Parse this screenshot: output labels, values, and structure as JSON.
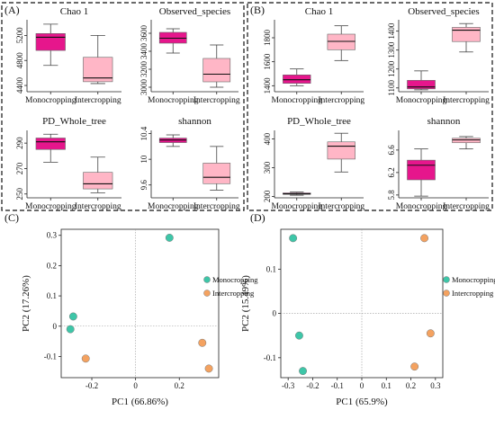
{
  "panel_labels": [
    "(A)",
    "(B)",
    "(C)",
    "(D)"
  ],
  "colors": {
    "monocropping_box": "#e6168c",
    "intercropping_box": "#ffb6c6",
    "monocropping_point": "#3ec6a8",
    "intercropping_point": "#f4a260"
  },
  "chart_data": [
    {
      "id": "A1",
      "type": "box",
      "title": "Chao 1",
      "categories": [
        "Monocropping",
        "Intercropping"
      ],
      "ylim": [
        4300,
        5450
      ],
      "yticks": [
        4400,
        4800,
        5200
      ],
      "boxes": [
        {
          "min": 4720,
          "q1": 4960,
          "median": 5170,
          "q3": 5230,
          "max": 5380
        },
        {
          "min": 4430,
          "q1": 4460,
          "median": 4520,
          "q3": 4850,
          "max": 5200
        }
      ]
    },
    {
      "id": "A2",
      "type": "box",
      "title": "Observed_species",
      "categories": [
        "Monocropping",
        "Intercropping"
      ],
      "ylim": [
        2950,
        3750
      ],
      "yticks": [
        3000,
        3200,
        3400,
        3600
      ],
      "boxes": [
        {
          "min": 3380,
          "q1": 3490,
          "median": 3545,
          "q3": 3610,
          "max": 3650
        },
        {
          "min": 3000,
          "q1": 3060,
          "median": 3145,
          "q3": 3320,
          "max": 3470
        }
      ]
    },
    {
      "id": "A3",
      "type": "box",
      "title": "PD_Whole_tree",
      "categories": [
        "Monocropping",
        "Intercropping"
      ],
      "ylim": [
        247,
        300
      ],
      "yticks": [
        250,
        270,
        290
      ],
      "boxes": [
        {
          "min": 275,
          "q1": 285,
          "median": 291,
          "q3": 294,
          "max": 297
        },
        {
          "min": 251,
          "q1": 254,
          "median": 258,
          "q3": 267,
          "max": 279
        }
      ]
    },
    {
      "id": "A4",
      "type": "box",
      "title": "shannon",
      "categories": [
        "Monocropping",
        "Intercropping"
      ],
      "ylim": [
        9.4,
        10.45
      ],
      "yticks": [
        9.6,
        10.0,
        10.4
      ],
      "boxes": [
        {
          "min": 10.2,
          "q1": 10.26,
          "median": 10.3,
          "q3": 10.33,
          "max": 10.38
        },
        {
          "min": 9.52,
          "q1": 9.62,
          "median": 9.72,
          "q3": 9.94,
          "max": 10.2
        }
      ]
    },
    {
      "id": "B1",
      "type": "box",
      "title": "Chao 1",
      "categories": [
        "Monocropping",
        "Intercropping"
      ],
      "ylim": [
        1350,
        1950
      ],
      "yticks": [
        1400,
        1600,
        1800
      ],
      "boxes": [
        {
          "min": 1400,
          "q1": 1420,
          "median": 1450,
          "q3": 1490,
          "max": 1540
        },
        {
          "min": 1610,
          "q1": 1700,
          "median": 1770,
          "q3": 1830,
          "max": 1900
        }
      ]
    },
    {
      "id": "B2",
      "type": "box",
      "title": "Observed_species",
      "categories": [
        "Monocropping",
        "Intercropping"
      ],
      "ylim": [
        1080,
        1460
      ],
      "yticks": [
        1100,
        1200,
        1300,
        1400
      ],
      "boxes": [
        {
          "min": 1090,
          "q1": 1095,
          "median": 1105,
          "q3": 1140,
          "max": 1190
        },
        {
          "min": 1290,
          "q1": 1345,
          "median": 1405,
          "q3": 1420,
          "max": 1440
        }
      ]
    },
    {
      "id": "B3",
      "type": "box",
      "title": "PD_Whole_tree",
      "categories": [
        "Monocropping",
        "Intercropping"
      ],
      "ylim": [
        195,
        430
      ],
      "yticks": [
        200,
        300,
        400
      ],
      "boxes": [
        {
          "min": 204,
          "q1": 207,
          "median": 209,
          "q3": 212,
          "max": 215
        },
        {
          "min": 285,
          "q1": 330,
          "median": 375,
          "q3": 390,
          "max": 420
        }
      ]
    },
    {
      "id": "B4",
      "type": "box",
      "title": "shannon",
      "categories": [
        "Monocropping",
        "Intercropping"
      ],
      "ylim": [
        5.75,
        6.95
      ],
      "yticks": [
        5.8,
        6.2,
        6.6
      ],
      "boxes": [
        {
          "min": 5.78,
          "q1": 6.07,
          "median": 6.33,
          "q3": 6.42,
          "max": 6.62
        },
        {
          "min": 6.62,
          "q1": 6.73,
          "median": 6.78,
          "q3": 6.81,
          "max": 6.84
        }
      ]
    },
    {
      "id": "C",
      "type": "scatter",
      "xlabel": "PC1 (66.86%)",
      "ylabel": "PC2 (17.26%)",
      "xlim": [
        -0.34,
        0.38
      ],
      "ylim": [
        -0.17,
        0.32
      ],
      "xticks": [
        -0.2,
        0.0,
        0.2
      ],
      "yticks": [
        -0.1,
        0.0,
        0.1,
        0.2,
        0.3
      ],
      "series": [
        {
          "name": "Monocropping",
          "points": [
            [
              0.155,
              0.292
            ],
            [
              -0.285,
              0.032
            ],
            [
              -0.298,
              -0.01
            ]
          ]
        },
        {
          "name": "Intercropping",
          "points": [
            [
              -0.228,
              -0.107
            ],
            [
              0.305,
              -0.055
            ],
            [
              0.335,
              -0.14
            ]
          ]
        }
      ]
    },
    {
      "id": "D",
      "type": "scatter",
      "xlabel": "PC1 (65.9%)",
      "ylabel": "PC2 (15.49%)",
      "xlim": [
        -0.33,
        0.33
      ],
      "ylim": [
        -0.145,
        0.19
      ],
      "xticks": [
        -0.3,
        -0.2,
        -0.1,
        0.0,
        0.1,
        0.2,
        0.3
      ],
      "yticks": [
        -0.1,
        0.0,
        0.1
      ],
      "series": [
        {
          "name": "Monocropping",
          "points": [
            [
              -0.28,
              0.17
            ],
            [
              -0.255,
              -0.05
            ],
            [
              -0.24,
              -0.13
            ]
          ]
        },
        {
          "name": "Intercropping",
          "points": [
            [
              0.255,
              0.17
            ],
            [
              0.28,
              -0.045
            ],
            [
              0.215,
              -0.12
            ]
          ]
        }
      ]
    }
  ]
}
